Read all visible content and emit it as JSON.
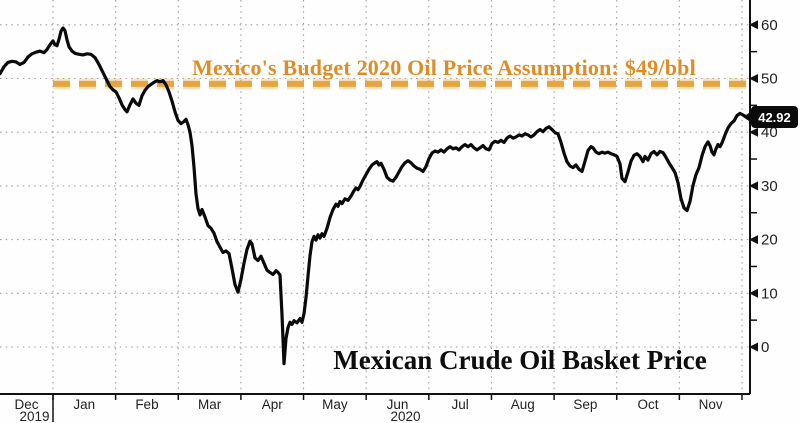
{
  "chart_data": {
    "type": "line",
    "title": "Mexican Crude Oil Basket Price",
    "annotation": "Mexico's Budget 2020 Oil Price Assumption: $49/bbl",
    "assumption_value": 49,
    "last_price_label": "42.92",
    "last_price_value": 42.92,
    "x_tick_labels": [
      "Dec",
      "Jan",
      "Feb",
      "Mar",
      "Apr",
      "May",
      "Jun",
      "Jul",
      "Aug",
      "Sep",
      "Oct",
      "Nov"
    ],
    "x_year_labels": [
      {
        "month_index": 0,
        "text": "2019"
      },
      {
        "month_index": 6,
        "text": "2020"
      }
    ],
    "y_ticks": [
      0,
      10,
      20,
      30,
      40,
      50,
      60
    ],
    "y_minor_ticks": [
      5,
      15,
      25,
      35,
      45,
      55
    ],
    "ylim": [
      -8.8,
      64.6
    ],
    "grid": "dotted",
    "legend_position": "none",
    "colors": {
      "line": "#0a0a0a",
      "assumption_line": "#E8A53E",
      "annotation_text": "#DE8D26",
      "grid": "#8f8f8f",
      "axis": "#111111",
      "tick_label": "#222222",
      "bubble_bg": "#0b0b0b",
      "bubble_text": "#ffffff",
      "background": "#fefefe"
    },
    "series": [
      {
        "name": "Mexican Crude Oil Basket Price",
        "points": [
          [
            0,
            50.9
          ],
          [
            4,
            52.2
          ],
          [
            8,
            53.0
          ],
          [
            12,
            53.2
          ],
          [
            16,
            53.1
          ],
          [
            20,
            52.6
          ],
          [
            24,
            53.0
          ],
          [
            28,
            54.0
          ],
          [
            32,
            54.6
          ],
          [
            36,
            54.9
          ],
          [
            40,
            55.1
          ],
          [
            44,
            54.8
          ],
          [
            47,
            55.4
          ],
          [
            50,
            56.3
          ],
          [
            53,
            57.0
          ],
          [
            55,
            56.3
          ],
          [
            57,
            56.1
          ],
          [
            59,
            57.3
          ],
          [
            61,
            58.8
          ],
          [
            63,
            59.4
          ],
          [
            65,
            58.9
          ],
          [
            67,
            57.2
          ],
          [
            69,
            55.9
          ],
          [
            72,
            55.1
          ],
          [
            75,
            54.7
          ],
          [
            79,
            54.5
          ],
          [
            83,
            54.4
          ],
          [
            87,
            54.6
          ],
          [
            91,
            54.5
          ],
          [
            95,
            53.9
          ],
          [
            99,
            52.6
          ],
          [
            103,
            51.1
          ],
          [
            107,
            49.6
          ],
          [
            110,
            48.5
          ],
          [
            113,
            47.9
          ],
          [
            116,
            47.5
          ],
          [
            119,
            46.4
          ],
          [
            122,
            45.1
          ],
          [
            125,
            44.2
          ],
          [
            127,
            43.8
          ],
          [
            130,
            45.1
          ],
          [
            133,
            46.2
          ],
          [
            136,
            45.4
          ],
          [
            139,
            45.0
          ],
          [
            142,
            46.8
          ],
          [
            145,
            47.8
          ],
          [
            148,
            48.5
          ],
          [
            151,
            48.9
          ],
          [
            154,
            49.3
          ],
          [
            157,
            49.6
          ],
          [
            160,
            49.4
          ],
          [
            163,
            49.6
          ],
          [
            166,
            48.8
          ],
          [
            169,
            47.5
          ],
          [
            172,
            45.8
          ],
          [
            175,
            43.8
          ],
          [
            178,
            42.2
          ],
          [
            181,
            41.6
          ],
          [
            184,
            42.0
          ],
          [
            186,
            42.4
          ],
          [
            188,
            41.4
          ],
          [
            190,
            40.0
          ],
          [
            192,
            37.5
          ],
          [
            194,
            33.5
          ],
          [
            196,
            28.5
          ],
          [
            198,
            25.8
          ],
          [
            200,
            24.6
          ],
          [
            202,
            25.6
          ],
          [
            205,
            24.2
          ],
          [
            208,
            22.6
          ],
          [
            211,
            22.1
          ],
          [
            214,
            21.2
          ],
          [
            217,
            19.6
          ],
          [
            220,
            18.6
          ],
          [
            223,
            17.6
          ],
          [
            226,
            17.9
          ],
          [
            229,
            17.4
          ],
          [
            232,
            14.6
          ],
          [
            235,
            11.6
          ],
          [
            238,
            10.2
          ],
          [
            241,
            12.6
          ],
          [
            244,
            15.6
          ],
          [
            247,
            18.2
          ],
          [
            250,
            19.7
          ],
          [
            252,
            19.2
          ],
          [
            255,
            16.6
          ],
          [
            258,
            16.1
          ],
          [
            261,
            16.9
          ],
          [
            264,
            15.6
          ],
          [
            267,
            14.3
          ],
          [
            270,
            13.9
          ],
          [
            273,
            13.5
          ],
          [
            276,
            14.2
          ],
          [
            278,
            13.9
          ],
          [
            280,
            13.4
          ],
          [
            282,
            6.0
          ],
          [
            284,
            -3.1
          ],
          [
            286,
            1.6
          ],
          [
            288,
            3.6
          ],
          [
            290,
            4.6
          ],
          [
            292,
            4.2
          ],
          [
            294,
            4.9
          ],
          [
            297,
            4.5
          ],
          [
            300,
            5.3
          ],
          [
            302,
            4.6
          ],
          [
            304,
            6.2
          ],
          [
            306,
            9.2
          ],
          [
            308,
            13.2
          ],
          [
            310,
            17.0
          ],
          [
            312,
            19.6
          ],
          [
            314,
            20.6
          ],
          [
            316,
            19.9
          ],
          [
            318,
            20.9
          ],
          [
            320,
            20.3
          ],
          [
            322,
            21.1
          ],
          [
            324,
            20.6
          ],
          [
            327,
            22.1
          ],
          [
            330,
            24.1
          ],
          [
            333,
            25.6
          ],
          [
            336,
            26.6
          ],
          [
            338,
            26.2
          ],
          [
            340,
            27.1
          ],
          [
            342,
            26.7
          ],
          [
            345,
            27.6
          ],
          [
            348,
            27.3
          ],
          [
            351,
            28.1
          ],
          [
            354,
            29.1
          ],
          [
            356,
            29.6
          ],
          [
            358,
            29.3
          ],
          [
            360,
            29.9
          ],
          [
            363,
            31.1
          ],
          [
            366,
            32.1
          ],
          [
            369,
            33.1
          ],
          [
            372,
            33.9
          ],
          [
            375,
            34.3
          ],
          [
            377,
            34.5
          ],
          [
            379,
            33.9
          ],
          [
            381,
            34.2
          ],
          [
            384,
            33.1
          ],
          [
            387,
            31.6
          ],
          [
            390,
            31.1
          ],
          [
            393,
            30.9
          ],
          [
            396,
            31.6
          ],
          [
            399,
            32.6
          ],
          [
            402,
            33.6
          ],
          [
            405,
            34.3
          ],
          [
            408,
            34.7
          ],
          [
            411,
            34.3
          ],
          [
            414,
            33.7
          ],
          [
            417,
            33.3
          ],
          [
            420,
            33.1
          ],
          [
            423,
            32.7
          ],
          [
            426,
            33.6
          ],
          [
            429,
            35.1
          ],
          [
            432,
            36.1
          ],
          [
            435,
            36.5
          ],
          [
            438,
            36.3
          ],
          [
            441,
            36.7
          ],
          [
            444,
            36.3
          ],
          [
            447,
            36.9
          ],
          [
            450,
            37.3
          ],
          [
            453,
            36.9
          ],
          [
            456,
            37.1
          ],
          [
            459,
            36.7
          ],
          [
            462,
            37.3
          ],
          [
            465,
            37.7
          ],
          [
            468,
            37.3
          ],
          [
            471,
            37.7
          ],
          [
            474,
            37.1
          ],
          [
            477,
            36.7
          ],
          [
            480,
            37.1
          ],
          [
            483,
            37.5
          ],
          [
            486,
            36.9
          ],
          [
            489,
            36.7
          ],
          [
            492,
            37.9
          ],
          [
            495,
            38.3
          ],
          [
            498,
            38.1
          ],
          [
            501,
            38.5
          ],
          [
            504,
            38.1
          ],
          [
            507,
            38.9
          ],
          [
            510,
            39.3
          ],
          [
            513,
            38.9
          ],
          [
            516,
            39.1
          ],
          [
            519,
            39.5
          ],
          [
            522,
            39.3
          ],
          [
            525,
            39.7
          ],
          [
            528,
            39.5
          ],
          [
            531,
            39.1
          ],
          [
            534,
            39.5
          ],
          [
            537,
            40.1
          ],
          [
            540,
            40.5
          ],
          [
            543,
            40.1
          ],
          [
            546,
            40.7
          ],
          [
            549,
            41.0
          ],
          [
            552,
            40.5
          ],
          [
            555,
            39.9
          ],
          [
            558,
            39.7
          ],
          [
            561,
            38.1
          ],
          [
            564,
            36.1
          ],
          [
            567,
            34.5
          ],
          [
            570,
            33.7
          ],
          [
            573,
            33.4
          ],
          [
            576,
            33.9
          ],
          [
            579,
            33.1
          ],
          [
            582,
            32.7
          ],
          [
            585,
            34.6
          ],
          [
            588,
            36.6
          ],
          [
            591,
            37.3
          ],
          [
            593,
            37.1
          ],
          [
            596,
            36.3
          ],
          [
            599,
            36.0
          ],
          [
            602,
            36.3
          ],
          [
            605,
            36.1
          ],
          [
            608,
            36.3
          ],
          [
            611,
            36.0
          ],
          [
            614,
            35.8
          ],
          [
            617,
            35.5
          ],
          [
            620,
            34.1
          ],
          [
            622,
            31.4
          ],
          [
            625,
            30.8
          ],
          [
            628,
            32.6
          ],
          [
            631,
            34.6
          ],
          [
            634,
            35.7
          ],
          [
            637,
            36.0
          ],
          [
            640,
            35.5
          ],
          [
            643,
            34.5
          ],
          [
            645,
            35.5
          ],
          [
            648,
            34.8
          ],
          [
            651,
            36.0
          ],
          [
            654,
            36.4
          ],
          [
            657,
            35.8
          ],
          [
            660,
            36.4
          ],
          [
            663,
            36.2
          ],
          [
            666,
            35.3
          ],
          [
            669,
            34.3
          ],
          [
            672,
            33.4
          ],
          [
            675,
            32.5
          ],
          [
            678,
            30.6
          ],
          [
            681,
            27.6
          ],
          [
            684,
            25.9
          ],
          [
            687,
            25.4
          ],
          [
            690,
            27.1
          ],
          [
            693,
            30.1
          ],
          [
            696,
            32.1
          ],
          [
            699,
            33.4
          ],
          [
            702,
            35.6
          ],
          [
            705,
            37.3
          ],
          [
            708,
            38.2
          ],
          [
            710,
            37.5
          ],
          [
            712,
            36.3
          ],
          [
            714,
            35.8
          ],
          [
            716,
            36.9
          ],
          [
            718,
            37.7
          ],
          [
            720,
            37.3
          ],
          [
            722,
            38.0
          ],
          [
            725,
            39.5
          ],
          [
            728,
            40.8
          ],
          [
            731,
            41.6
          ],
          [
            734,
            42.1
          ],
          [
            737,
            43.1
          ],
          [
            740,
            43.5
          ],
          [
            743,
            43.2
          ],
          [
            746,
            42.9
          ],
          [
            748,
            42.92
          ]
        ]
      }
    ]
  }
}
